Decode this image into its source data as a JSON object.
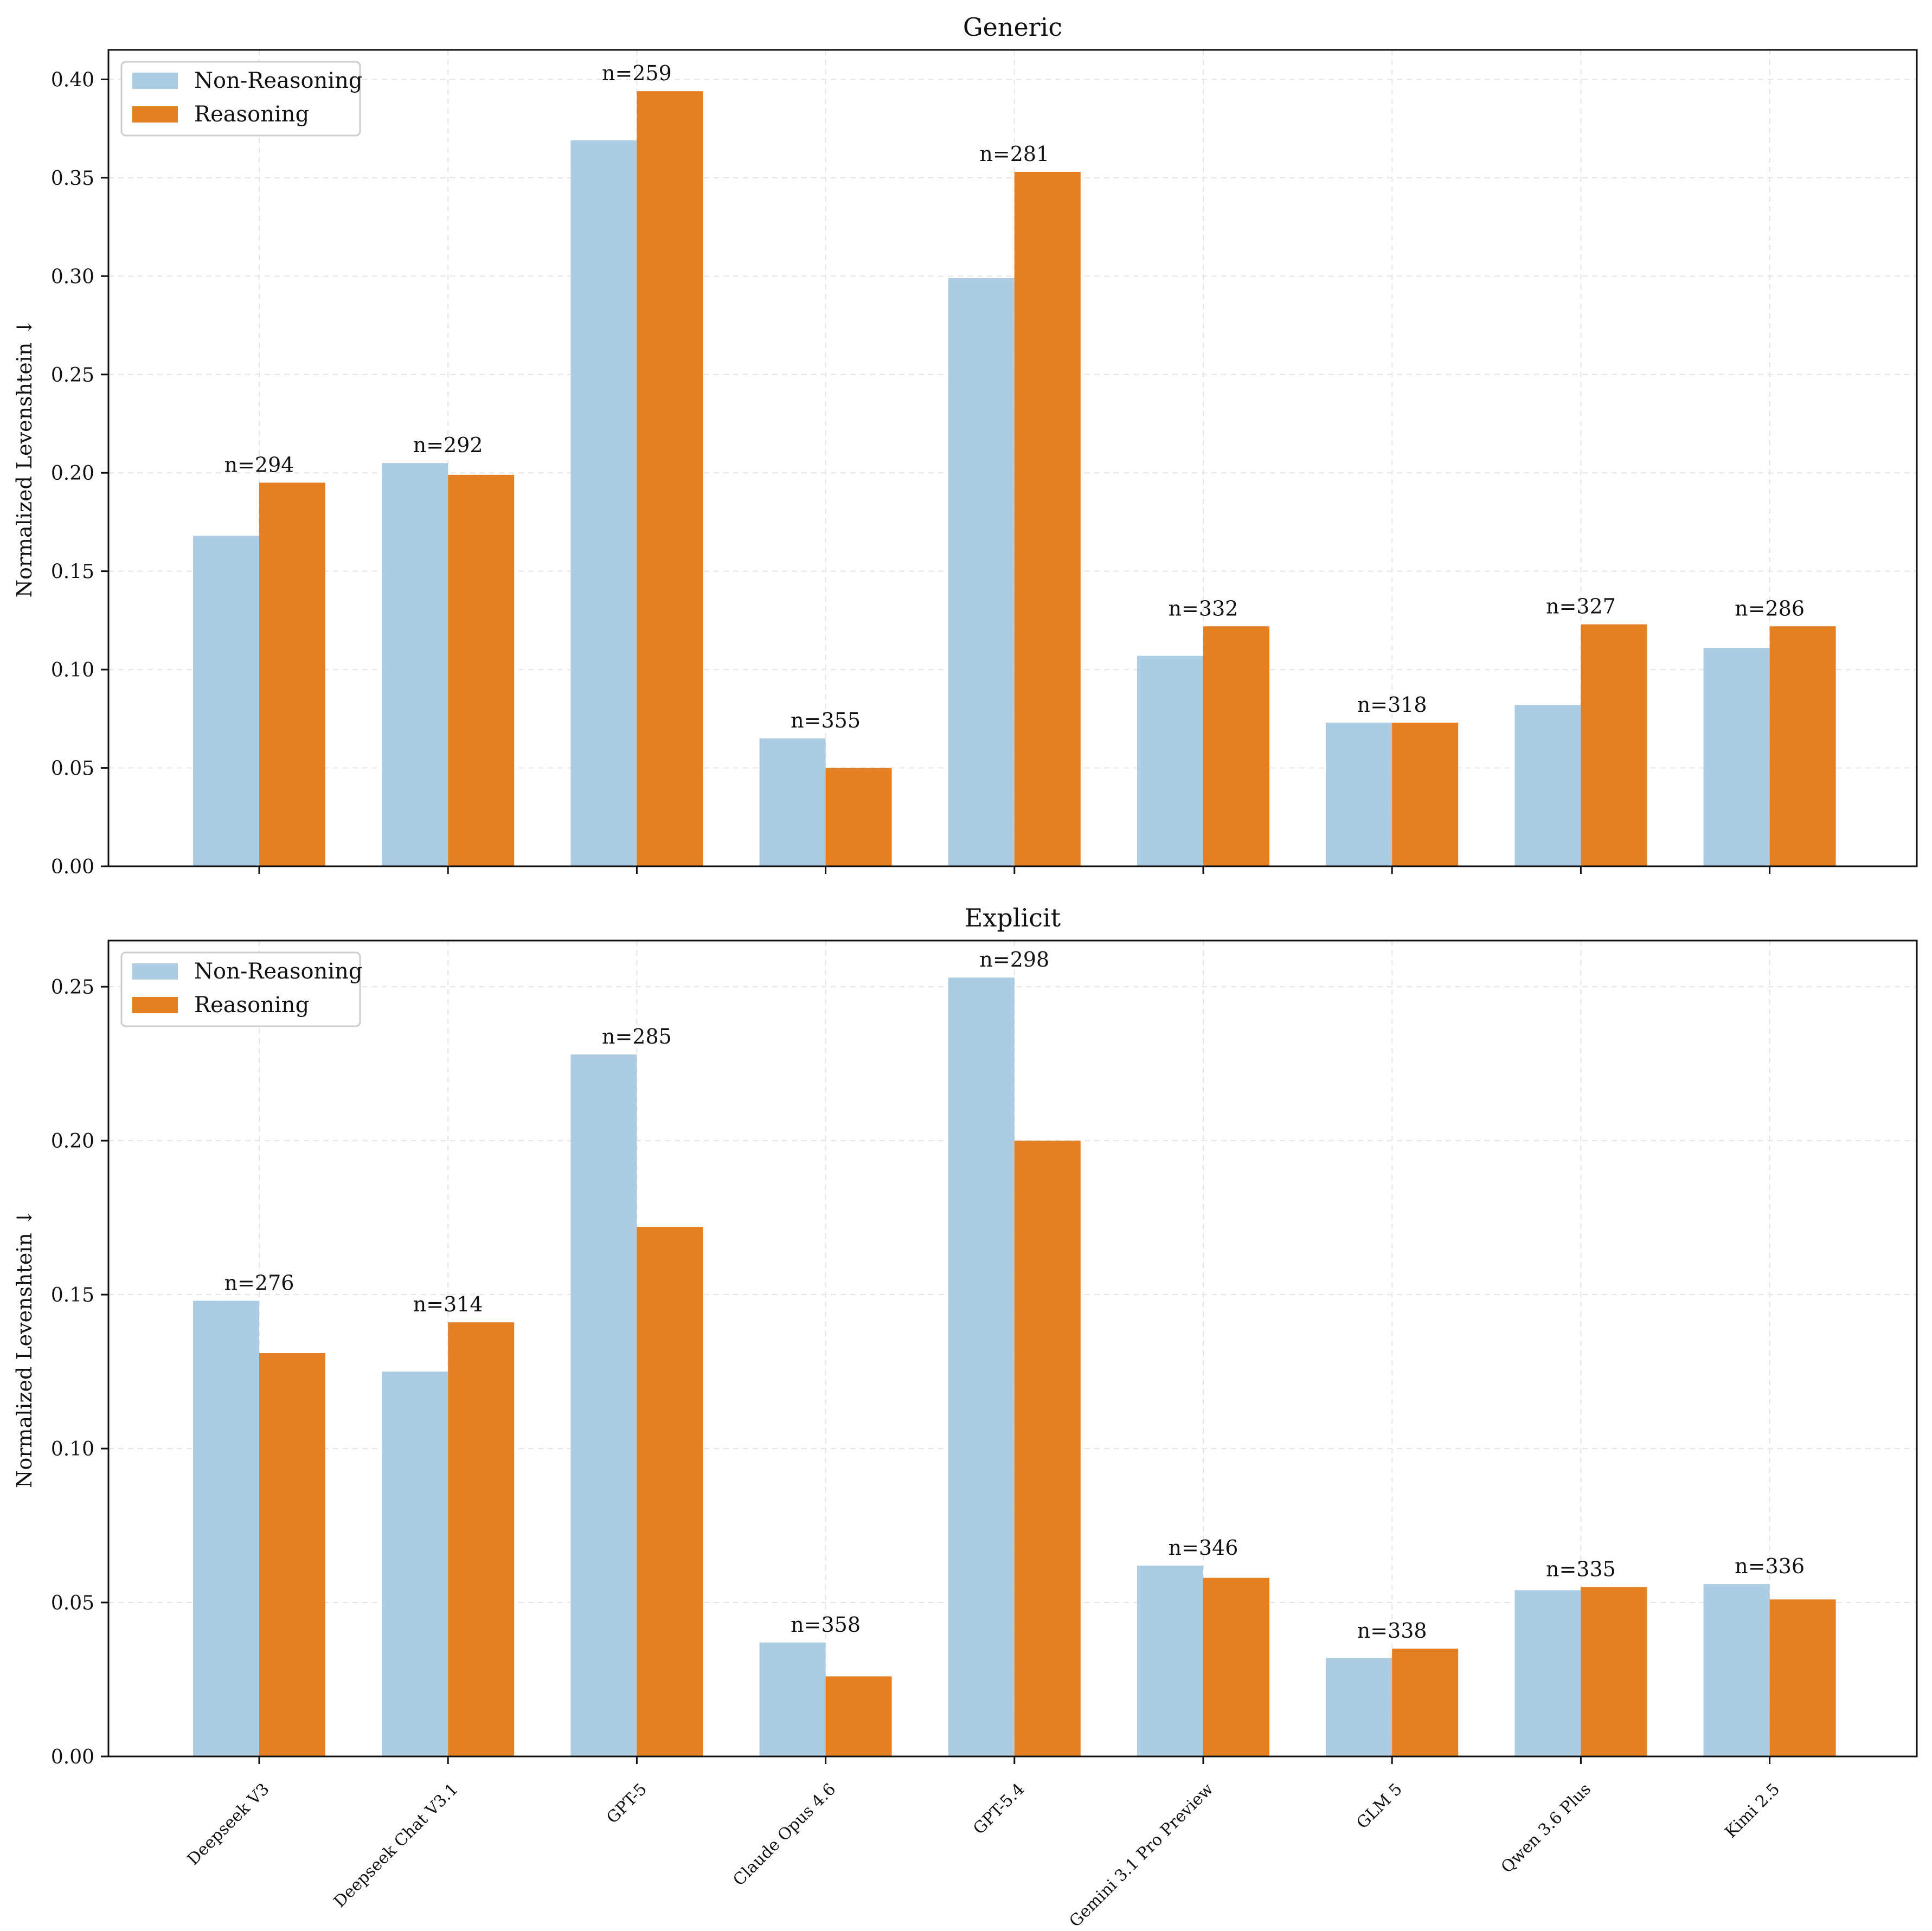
{
  "colors": {
    "non_reasoning": "#abcce2",
    "reasoning": "#e57f24",
    "grid": "#e4e4e4",
    "axis": "#111111"
  },
  "chart_data": [
    {
      "type": "bar",
      "title": "Generic",
      "ylabel": "Normalized Levenshtein ↓",
      "xlabel": "",
      "ylim": [
        0,
        0.415
      ],
      "yticks": [
        0.0,
        0.05,
        0.1,
        0.15,
        0.2,
        0.25,
        0.3,
        0.35,
        0.4
      ],
      "ytick_labels": [
        "0.00",
        "0.05",
        "0.10",
        "0.15",
        "0.20",
        "0.25",
        "0.30",
        "0.35",
        "0.40"
      ],
      "grid": true,
      "legend": {
        "position": "top-left"
      },
      "categories": [
        "Deepseek V3",
        "Deepseek Chat V3.1",
        "GPT-5",
        "Claude Opus 4.6",
        "GPT-5.4",
        "Gemini 3.1 Pro Preview",
        "GLM 5",
        "Qwen 3.6 Plus",
        "Kimi 2.5"
      ],
      "show_category_labels": false,
      "series": [
        {
          "name": "Non-Reasoning",
          "values": [
            0.168,
            0.205,
            0.369,
            0.065,
            0.299,
            0.107,
            0.073,
            0.082,
            0.111
          ]
        },
        {
          "name": "Reasoning",
          "values": [
            0.195,
            0.199,
            0.394,
            0.05,
            0.353,
            0.122,
            0.073,
            0.123,
            0.122
          ]
        }
      ],
      "annotations": [
        "n=294",
        "n=292",
        "n=259",
        "n=355",
        "n=281",
        "n=332",
        "n=318",
        "n=327",
        "n=286"
      ]
    },
    {
      "type": "bar",
      "title": "Explicit",
      "ylabel": "Normalized Levenshtein ↓",
      "xlabel": "",
      "ylim": [
        0,
        0.265
      ],
      "yticks": [
        0.0,
        0.05,
        0.1,
        0.15,
        0.2,
        0.25
      ],
      "ytick_labels": [
        "0.00",
        "0.05",
        "0.10",
        "0.15",
        "0.20",
        "0.25"
      ],
      "grid": true,
      "legend": {
        "position": "top-left"
      },
      "categories": [
        "Deepseek V3",
        "Deepseek Chat V3.1",
        "GPT-5",
        "Claude Opus 4.6",
        "GPT-5.4",
        "Gemini 3.1 Pro Preview",
        "GLM 5",
        "Qwen 3.6 Plus",
        "Kimi 2.5"
      ],
      "show_category_labels": true,
      "series": [
        {
          "name": "Non-Reasoning",
          "values": [
            0.148,
            0.125,
            0.228,
            0.037,
            0.253,
            0.062,
            0.032,
            0.054,
            0.056
          ]
        },
        {
          "name": "Reasoning",
          "values": [
            0.131,
            0.141,
            0.172,
            0.026,
            0.2,
            0.058,
            0.035,
            0.055,
            0.051
          ]
        }
      ],
      "annotations": [
        "n=276",
        "n=314",
        "n=285",
        "n=358",
        "n=298",
        "n=346",
        "n=338",
        "n=335",
        "n=336"
      ]
    }
  ]
}
